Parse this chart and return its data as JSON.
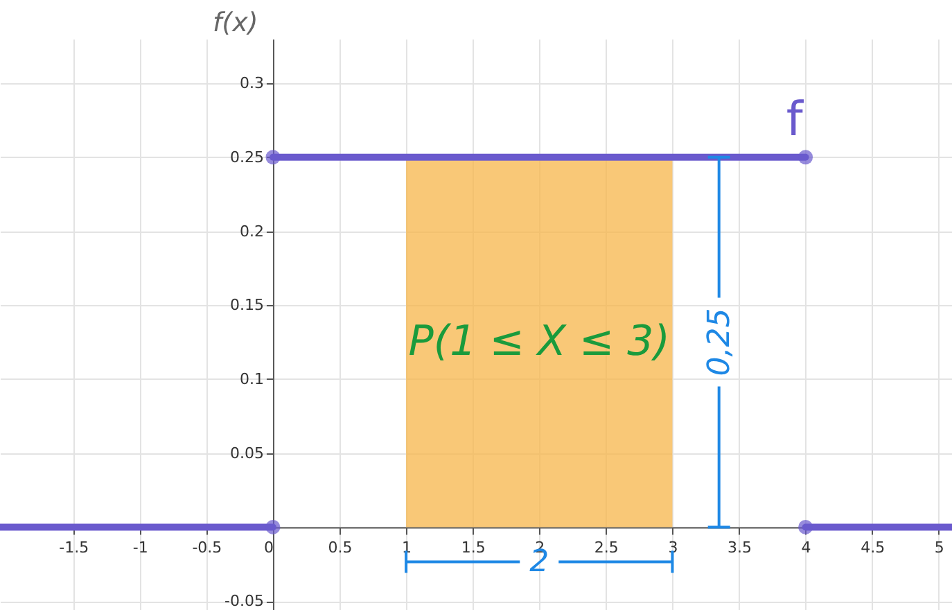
{
  "chart_data": {
    "type": "line",
    "ylabel": "f(x)",
    "xlim": [
      -2.05,
      5.1
    ],
    "ylim": [
      -0.056,
      0.33
    ],
    "xticks": [
      -1.5,
      -1,
      -0.5,
      0,
      0.5,
      1,
      1.5,
      2,
      2.5,
      3,
      3.5,
      4,
      4.5,
      5
    ],
    "yticks": [
      -0.05,
      {
        "value": 0,
        "label": null
      },
      0.05,
      0.1,
      0.15,
      0.2,
      0.25,
      0.3
    ],
    "grid": true,
    "line_style": "solid",
    "series": [
      {
        "color": "#6a5acd",
        "x": [
          -2.05,
          0
        ],
        "values": [
          0,
          0
        ]
      },
      {
        "name": "f",
        "color": "#6a5acd",
        "x": [
          0,
          4
        ],
        "values": [
          0.25,
          0.25
        ]
      },
      {
        "color": "#6a5acd",
        "x": [
          4,
          5.1
        ],
        "values": [
          0,
          0
        ]
      },
      {
        "type": "area",
        "color": "#f7b64a",
        "x": [
          1,
          3
        ],
        "values": [
          0.25,
          0.25
        ]
      },
      {
        "type": "scatter",
        "color": "#6a5acd",
        "x": [
          0,
          4
        ],
        "values": [
          0.25,
          0.25
        ]
      },
      {
        "type": "scatter",
        "color": "#6a5acd",
        "x": [
          0,
          4
        ],
        "values": [
          0,
          0
        ]
      }
    ],
    "annotations": [
      "P(1 ≤ X ≤ 3)",
      {
        "text": "0,25",
        "x": 3.35,
        "y": 0.25
      },
      "2"
    ]
  }
}
